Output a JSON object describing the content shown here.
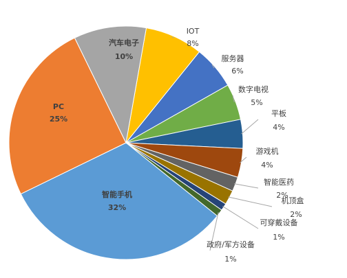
{
  "chart_data": {
    "type": "pie",
    "categories": [
      "IOT",
      "服务器",
      "数字电视",
      "平板",
      "游戏机",
      "智能医药",
      "机顶盒",
      "可穿戴设备",
      "政府/军方设备",
      "智能手机",
      "PC",
      "汽车电子"
    ],
    "values": [
      8,
      6,
      5,
      4,
      4,
      2,
      2,
      1,
      1,
      32,
      25,
      10
    ],
    "value_labels": [
      "8%",
      "6%",
      "5%",
      "4%",
      "4%",
      "2%",
      "2%",
      "1%",
      "1%",
      "32%",
      "25%",
      "10%"
    ],
    "colors": [
      "#ffc000",
      "#4472c4",
      "#70ad47",
      "#255e91",
      "#9e480e",
      "#636363",
      "#997300",
      "#264478",
      "#43682b",
      "#5b9bd5",
      "#ed7d31",
      "#a5a5a5"
    ]
  }
}
